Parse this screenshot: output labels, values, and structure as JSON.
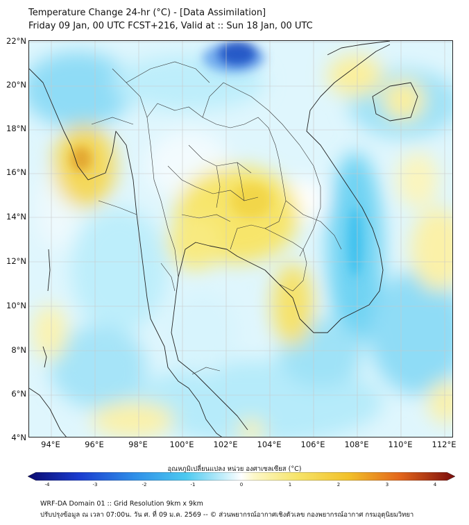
{
  "header": {
    "title_line1": "Temperature Change 24-hr (°C) - [Data Assimilation]",
    "title_line2": "Friday 09 Jan, 00 UTC FCST+216, Valid at :: Sun 18 Jan, 00 UTC"
  },
  "map": {
    "variable": "24-hr temperature change",
    "lat_range": [
      4,
      22
    ],
    "lon_range": [
      93,
      112.5
    ],
    "lat_labels": [
      "22°N",
      "20°N",
      "18°N",
      "16°N",
      "14°N",
      "12°N",
      "10°N",
      "8°N",
      "6°N",
      "4°N"
    ],
    "lon_labels": [
      "94°E",
      "96°E",
      "98°E",
      "100°E",
      "102°E",
      "104°E",
      "106°E",
      "108°E",
      "110°E",
      "112°E"
    ],
    "grid": true,
    "colors": {
      "neutral": "#ffffff",
      "cool_light": "#bfeefb",
      "cool_mid": "#4cc9f0",
      "cool_deep": "#0a1e9c",
      "warm_light": "#fdf5a6",
      "warm_mid": "#f2d64a",
      "warm_deep": "#e39a2b",
      "coastline": "#222222"
    }
  },
  "colorbar": {
    "title": "อุณหภูมิเปลี่ยนแปลง หน่วย องศาเซลเซียส (°C)",
    "ticks": [
      "-4",
      "-3",
      "-2",
      "-1",
      "0",
      "1",
      "2",
      "3",
      "4"
    ],
    "range": [
      -4,
      4
    ]
  },
  "footer": {
    "line1": "WRF-DA Domain 01 :: Grid Resolution 9km x 9km",
    "line2": "ปรับปรุงข้อมูล ณ เวลา 07:00น. วัน ศ. ที่ 09 ม.ค. 2569 -- © ส่วนพยากรณ์อากาศเชิงตัวเลข กองพยากรณ์อากาศ กรมอุตุนิยมวิทยา"
  }
}
